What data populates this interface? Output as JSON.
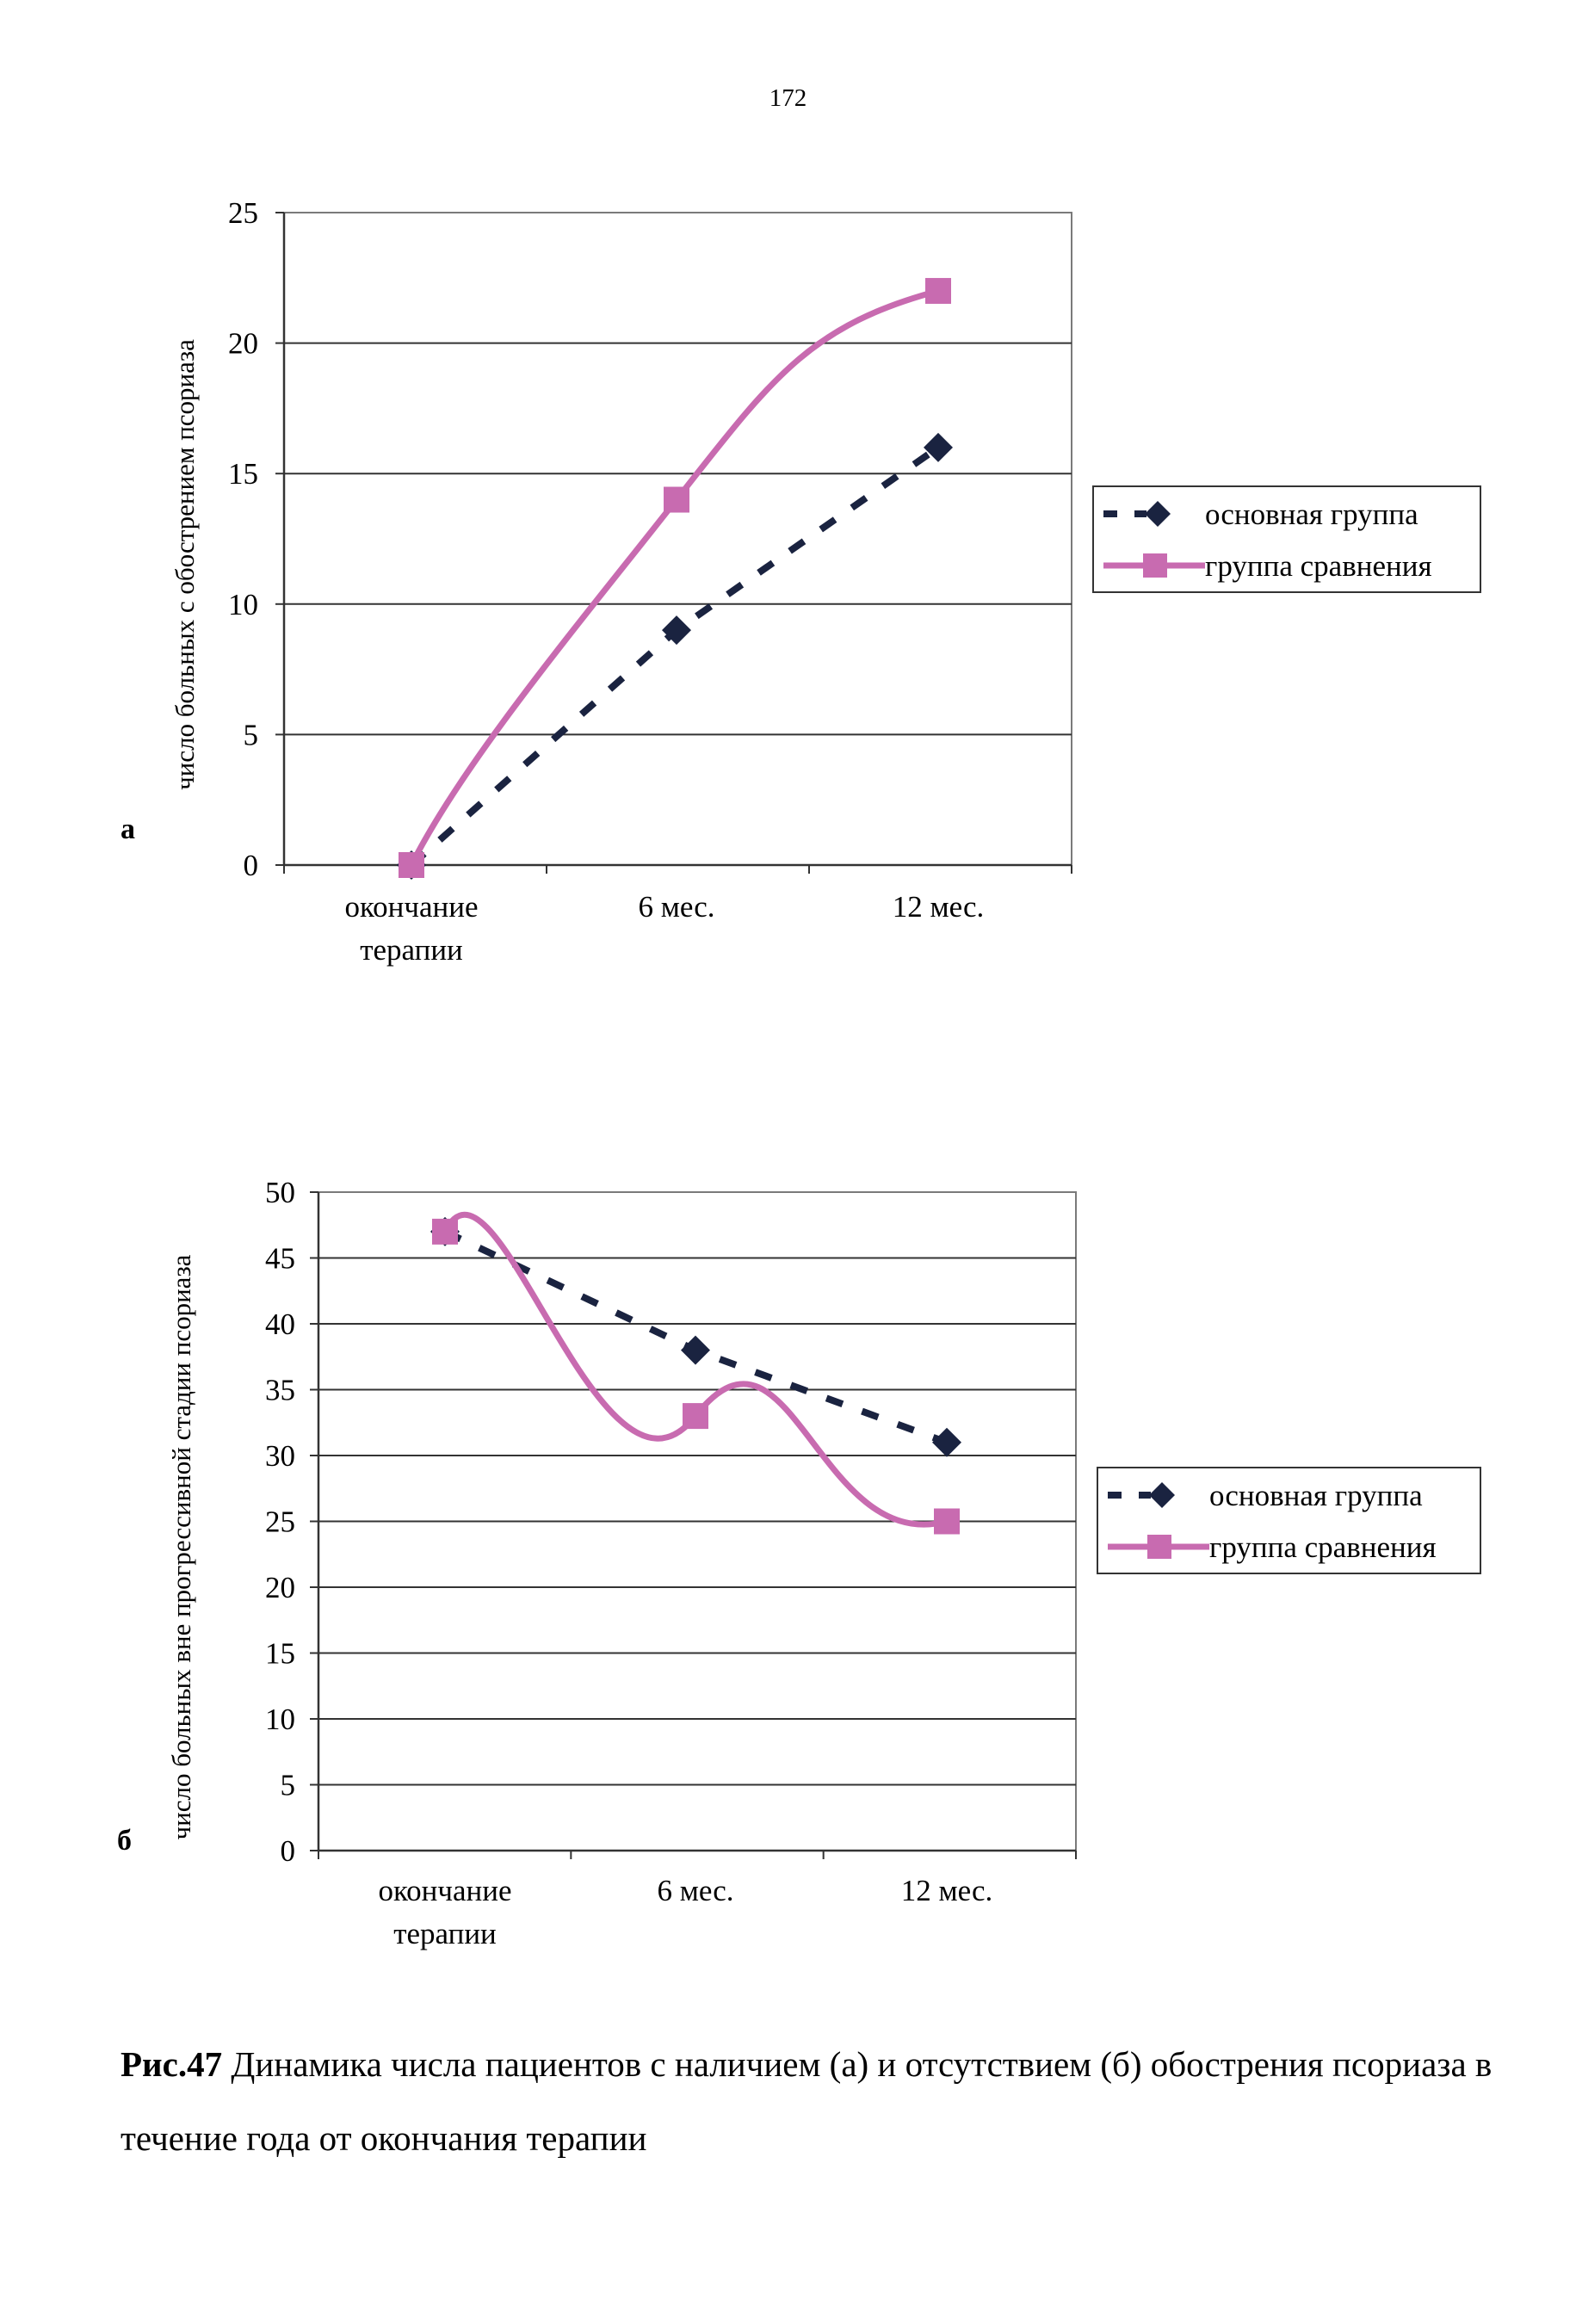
{
  "page": {
    "number": "172"
  },
  "panels": [
    {
      "label": "а"
    },
    {
      "label": "б"
    }
  ],
  "caption": {
    "figure": "Рис.47",
    "text": "Динамика числа пациентов с наличием (а) и отсутствием (б) обострения псориаза в течение года от окончания терапии"
  },
  "colors": {
    "main": "#1a2340",
    "comparison": "#c86bb0"
  },
  "chart_data": [
    {
      "type": "line",
      "title": "",
      "ylabel": "число больных с обострением псориаза",
      "categories": [
        [
          "окончание",
          "терапии"
        ],
        [
          "6 мес."
        ],
        [
          "12 мес."
        ]
      ],
      "ylim": [
        0,
        25
      ],
      "yticks": [
        0,
        5,
        10,
        15,
        20,
        25
      ],
      "grid": true,
      "legend_position": "right",
      "series": [
        {
          "name": "основная группа",
          "style": "dashed",
          "marker": "diamond",
          "color": "#1a2340",
          "values": [
            0,
            9,
            16
          ]
        },
        {
          "name": "группа сравнения",
          "style": "solid",
          "marker": "square",
          "color": "#c86bb0",
          "values": [
            0,
            14,
            22
          ]
        }
      ]
    },
    {
      "type": "line",
      "title": "",
      "ylabel": "число больных вне прогрессивной стадии псориаза",
      "categories": [
        [
          "окончание",
          "терапии"
        ],
        [
          "6 мес."
        ],
        [
          "12 мес."
        ]
      ],
      "ylim": [
        0,
        50
      ],
      "yticks": [
        0,
        5,
        10,
        15,
        20,
        25,
        30,
        35,
        40,
        45,
        50
      ],
      "grid": true,
      "legend_position": "right",
      "series": [
        {
          "name": "основная группа",
          "style": "dashed",
          "marker": "diamond",
          "color": "#1a2340",
          "values": [
            47,
            38,
            31
          ]
        },
        {
          "name": "группа сравнения",
          "style": "solid",
          "marker": "square",
          "color": "#c86bb0",
          "values": [
            47,
            33,
            25
          ]
        }
      ]
    }
  ]
}
